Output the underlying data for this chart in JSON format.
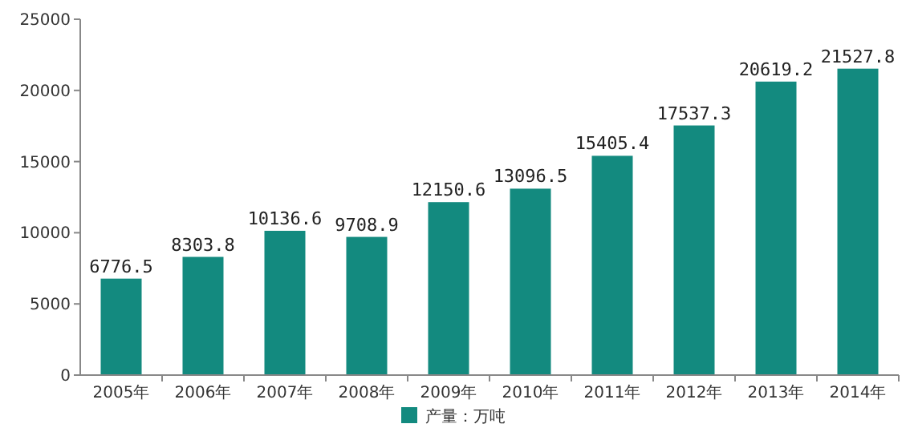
{
  "chart_data": {
    "type": "bar",
    "categories": [
      "2005年",
      "2006年",
      "2007年",
      "2008年",
      "2009年",
      "2010年",
      "2011年",
      "2012年",
      "2013年",
      "2014年"
    ],
    "series": [
      {
        "name": "产量：万吨",
        "color": "#138a7f",
        "values": [
          6776.5,
          8303.8,
          10136.6,
          9708.9,
          12150.6,
          13096.5,
          15405.4,
          17537.3,
          20619.2,
          21527.8
        ]
      }
    ],
    "ylim": [
      0,
      25000
    ],
    "yticks": [
      0,
      5000,
      10000,
      15000,
      20000,
      25000
    ],
    "data_labels": true,
    "legend": "bottom",
    "grid": false
  }
}
